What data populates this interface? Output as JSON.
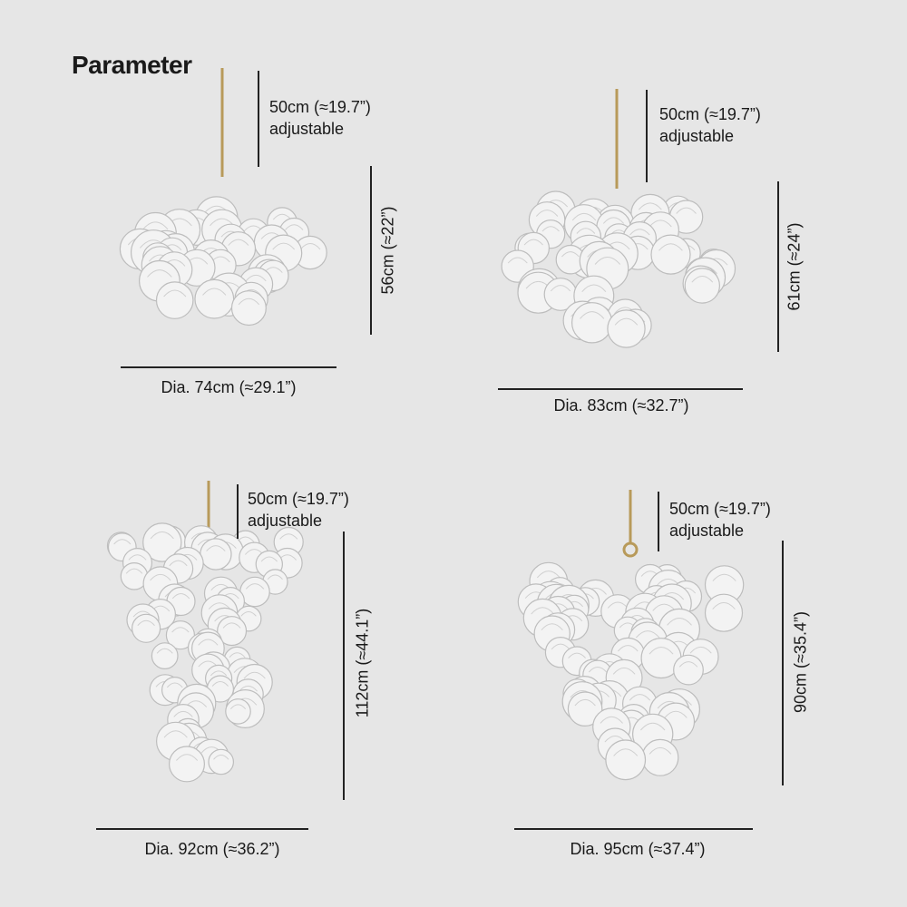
{
  "title": "Parameter",
  "items": [
    {
      "chain_length": "50cm (≈19.7”)",
      "chain_note": "adjustable",
      "height": "56cm (≈22”)",
      "diameter": "Dia. 74cm (≈29.1”)"
    },
    {
      "chain_length": "50cm (≈19.7”)",
      "chain_note": "adjustable",
      "height": "61cm (≈24”)",
      "diameter": "Dia. 83cm (≈32.7”)"
    },
    {
      "chain_length": "50cm (≈19.7”)",
      "chain_note": "adjustable",
      "height": "112cm (≈44.1”)",
      "diameter": "Dia. 92cm (≈36.2”)"
    },
    {
      "chain_length": "50cm (≈19.7”)",
      "chain_note": "adjustable",
      "height": "90cm (≈35.4”)",
      "diameter": "Dia. 95cm (≈37.4”)"
    }
  ],
  "colors": {
    "background": "#e6e6e6",
    "text": "#1a1a1a",
    "chain": "#b89a5a",
    "glass": "#f2f2f2"
  }
}
